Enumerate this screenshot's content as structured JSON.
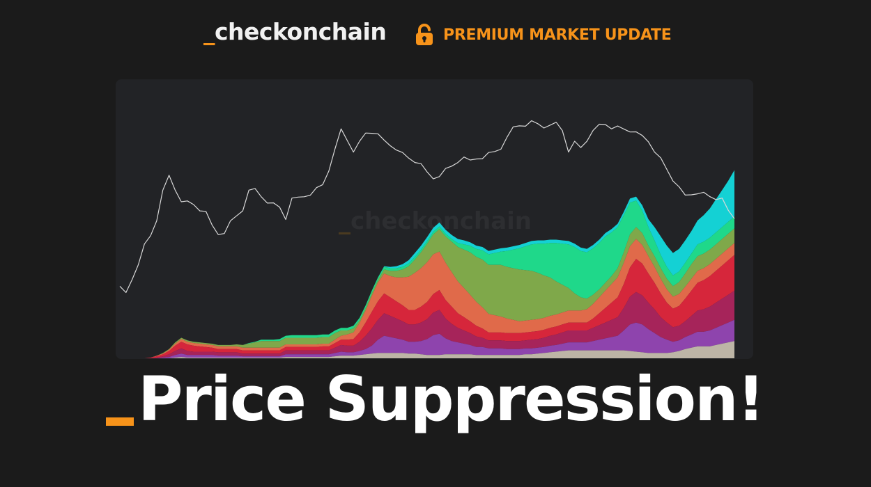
{
  "header": {
    "brand_prefix": "_",
    "brand_name": "checkonchain",
    "premium_label": "PREMIUM MARKET UPDATE",
    "premium_icon": "lock-icon"
  },
  "chart": {
    "watermark_prefix": "_",
    "watermark_text": "checkonchain"
  },
  "headline": {
    "text": "Price Suppression!"
  },
  "colors": {
    "background": "#1b1b1b",
    "chart_background": "#222326",
    "accent": "#f7931a",
    "text": "#ffffff",
    "price_line": "#d9d9d9"
  },
  "chart_data": {
    "type": "area",
    "title": "",
    "xlabel": "",
    "ylabel": "",
    "grid": false,
    "x": [
      0,
      1,
      2,
      3,
      4,
      5,
      6,
      7,
      8,
      9,
      10,
      11,
      12,
      13,
      14,
      15,
      16,
      17,
      18,
      19,
      20,
      21,
      22,
      23,
      24,
      25,
      26,
      27,
      28,
      29,
      30,
      31,
      32,
      33,
      34,
      35,
      36,
      37,
      38,
      39,
      40,
      41,
      42,
      43,
      44,
      45,
      46,
      47,
      48,
      49,
      50,
      51,
      52,
      53,
      54,
      55,
      56,
      57,
      58,
      59,
      60,
      61,
      62,
      63,
      64,
      65,
      66,
      67,
      68,
      69,
      70,
      71,
      72,
      73,
      74,
      75,
      76,
      77,
      78,
      79,
      80,
      81,
      82,
      83,
      84,
      85,
      86,
      87,
      88,
      89,
      90,
      91,
      92,
      93,
      94,
      95,
      96,
      97,
      98,
      99,
      100
    ],
    "price_line": {
      "color": "#d9d9d9",
      "values": [
        105,
        98,
        120,
        145,
        170,
        185,
        210,
        250,
        275,
        255,
        240,
        235,
        232,
        225,
        218,
        200,
        188,
        192,
        205,
        215,
        225,
        250,
        255,
        245,
        238,
        232,
        228,
        212,
        238,
        242,
        245,
        250,
        255,
        262,
        285,
        312,
        345,
        330,
        315,
        325,
        340,
        342,
        335,
        328,
        322,
        318,
        308,
        302,
        298,
        290,
        280,
        272,
        278,
        284,
        290,
        298,
        300,
        298,
        302,
        305,
        308,
        312,
        318,
        330,
        348,
        352,
        354,
        356,
        354,
        350,
        348,
        355,
        345,
        315,
        325,
        318,
        330,
        340,
        352,
        354,
        350,
        348,
        346,
        344,
        338,
        335,
        328,
        315,
        300,
        285,
        270,
        255,
        245,
        248,
        252,
        248,
        244,
        242,
        238,
        222,
        212
      ]
    },
    "series": [
      {
        "color": "#bdb5a6",
        "values": [
          0,
          0,
          0,
          0,
          0,
          0,
          0,
          0,
          0,
          1,
          2,
          1,
          1,
          1,
          1,
          1,
          1,
          1,
          1,
          1,
          1,
          1,
          1,
          1,
          1,
          1,
          1,
          2,
          2,
          2,
          2,
          2,
          2,
          2,
          2,
          3,
          4,
          4,
          4,
          5,
          6,
          7,
          8,
          8,
          8,
          8,
          8,
          7,
          7,
          6,
          5,
          5,
          5,
          6,
          6,
          6,
          6,
          6,
          5,
          5,
          5,
          5,
          5,
          5,
          5,
          5,
          6,
          6,
          7,
          8,
          9,
          10,
          11,
          12,
          12,
          12,
          12,
          12,
          12,
          12,
          12,
          12,
          12,
          11,
          10,
          9,
          8,
          8,
          8,
          8,
          9,
          11,
          14,
          16,
          18,
          18,
          18,
          20,
          22,
          24,
          26
        ]
      },
      {
        "color": "#8e44ad",
        "values": [
          0,
          0,
          0,
          0,
          0,
          0,
          0,
          1,
          2,
          4,
          5,
          4,
          4,
          4,
          4,
          4,
          3,
          3,
          3,
          3,
          2,
          2,
          2,
          2,
          2,
          2,
          2,
          4,
          4,
          4,
          4,
          4,
          4,
          4,
          4,
          5,
          6,
          5,
          5,
          6,
          8,
          12,
          20,
          26,
          24,
          22,
          20,
          18,
          18,
          20,
          24,
          30,
          32,
          24,
          20,
          18,
          16,
          14,
          12,
          12,
          10,
          10,
          10,
          9,
          9,
          9,
          9,
          9,
          9,
          9,
          10,
          10,
          11,
          12,
          12,
          12,
          12,
          14,
          16,
          18,
          20,
          22,
          30,
          40,
          44,
          42,
          36,
          30,
          24,
          20,
          16,
          16,
          18,
          20,
          22,
          22,
          24,
          26,
          28,
          30,
          32
        ]
      },
      {
        "color": "#a6245a",
        "values": [
          0,
          0,
          0,
          0,
          0,
          0,
          1,
          2,
          4,
          6,
          8,
          6,
          5,
          5,
          5,
          5,
          5,
          5,
          5,
          5,
          4,
          4,
          4,
          4,
          4,
          4,
          4,
          6,
          6,
          6,
          6,
          6,
          6,
          6,
          6,
          8,
          10,
          10,
          10,
          14,
          20,
          26,
          30,
          34,
          32,
          30,
          28,
          26,
          26,
          28,
          30,
          34,
          36,
          30,
          26,
          22,
          20,
          18,
          16,
          14,
          12,
          12,
          12,
          12,
          12,
          12,
          12,
          13,
          13,
          14,
          15,
          16,
          17,
          18,
          18,
          18,
          18,
          20,
          22,
          24,
          26,
          28,
          34,
          42,
          46,
          44,
          40,
          36,
          30,
          26,
          22,
          22,
          24,
          28,
          32,
          34,
          36,
          38,
          40,
          42,
          44
        ]
      },
      {
        "color": "#d6263b",
        "values": [
          0,
          0,
          0,
          0,
          0,
          1,
          2,
          3,
          5,
          8,
          10,
          10,
          9,
          8,
          7,
          6,
          5,
          5,
          5,
          5,
          5,
          5,
          5,
          5,
          5,
          5,
          5,
          5,
          5,
          5,
          5,
          5,
          5,
          6,
          6,
          7,
          8,
          9,
          10,
          14,
          20,
          25,
          28,
          30,
          28,
          26,
          24,
          22,
          22,
          24,
          26,
          28,
          30,
          28,
          26,
          22,
          20,
          18,
          16,
          14,
          12,
          12,
          12,
          12,
          12,
          12,
          12,
          12,
          12,
          12,
          12,
          12,
          12,
          12,
          12,
          12,
          12,
          14,
          18,
          22,
          26,
          30,
          36,
          44,
          50,
          48,
          44,
          40,
          36,
          30,
          28,
          30,
          34,
          38,
          42,
          44,
          46,
          48,
          50,
          52,
          54
        ]
      },
      {
        "color": "#e06a4a",
        "values": [
          0,
          0,
          0,
          0,
          0,
          0,
          1,
          1,
          2,
          3,
          4,
          4,
          4,
          4,
          4,
          4,
          4,
          4,
          4,
          4,
          4,
          4,
          4,
          4,
          4,
          4,
          4,
          4,
          4,
          4,
          4,
          4,
          4,
          4,
          4,
          5,
          6,
          8,
          10,
          14,
          18,
          24,
          28,
          30,
          32,
          36,
          42,
          50,
          56,
          58,
          60,
          60,
          58,
          56,
          52,
          48,
          44,
          40,
          36,
          32,
          28,
          26,
          24,
          22,
          20,
          18,
          18,
          18,
          18,
          18,
          18,
          18,
          18,
          18,
          18,
          18,
          20,
          22,
          24,
          26,
          28,
          30,
          32,
          32,
          30,
          28,
          26,
          24,
          22,
          20,
          18,
          18,
          18,
          18,
          18,
          18,
          18,
          18,
          18,
          18,
          18
        ]
      },
      {
        "color": "#7fa84a",
        "values": [
          0,
          0,
          0,
          0,
          0,
          0,
          0,
          1,
          1,
          2,
          2,
          2,
          2,
          2,
          2,
          2,
          2,
          2,
          2,
          3,
          4,
          6,
          8,
          10,
          10,
          10,
          10,
          10,
          10,
          10,
          10,
          10,
          10,
          10,
          10,
          10,
          8,
          6,
          6,
          4,
          4,
          4,
          4,
          6,
          8,
          10,
          12,
          16,
          20,
          24,
          28,
          30,
          34,
          40,
          46,
          52,
          58,
          64,
          68,
          72,
          74,
          76,
          78,
          78,
          78,
          78,
          76,
          74,
          70,
          64,
          58,
          50,
          42,
          34,
          26,
          20,
          16,
          14,
          12,
          12,
          12,
          14,
          16,
          18,
          18,
          18,
          16,
          16,
          16,
          16,
          16,
          18,
          20,
          22,
          22,
          22,
          22,
          22,
          22,
          22,
          22
        ]
      },
      {
        "color": "#1fd88a",
        "values": [
          0,
          0,
          0,
          0,
          0,
          0,
          0,
          0,
          0,
          0,
          0,
          0,
          0,
          0,
          0,
          0,
          0,
          0,
          0,
          0,
          0,
          1,
          1,
          2,
          2,
          2,
          3,
          3,
          4,
          4,
          4,
          4,
          4,
          4,
          4,
          4,
          4,
          4,
          4,
          4,
          4,
          4,
          4,
          4,
          4,
          4,
          4,
          4,
          4,
          4,
          4,
          4,
          4,
          4,
          4,
          6,
          8,
          10,
          12,
          14,
          16,
          18,
          20,
          24,
          28,
          32,
          36,
          40,
          44,
          48,
          52,
          58,
          62,
          66,
          70,
          70,
          70,
          70,
          70,
          70,
          66,
          62,
          56,
          48,
          40,
          34,
          28,
          24,
          20,
          18,
          16,
          16,
          16,
          16,
          18,
          18,
          18,
          18,
          18,
          18,
          18
        ]
      },
      {
        "color": "#14d1d4",
        "values": [
          0,
          0,
          0,
          0,
          0,
          0,
          0,
          0,
          0,
          0,
          0,
          0,
          0,
          0,
          0,
          0,
          0,
          0,
          0,
          0,
          0,
          0,
          0,
          0,
          0,
          0,
          0,
          0,
          0,
          0,
          0,
          0,
          0,
          0,
          0,
          0,
          0,
          0,
          0,
          0,
          0,
          0,
          0,
          1,
          2,
          3,
          4,
          5,
          6,
          6,
          6,
          6,
          6,
          6,
          6,
          6,
          6,
          5,
          5,
          5,
          5,
          5,
          5,
          5,
          5,
          5,
          5,
          5,
          5,
          5,
          5,
          5,
          5,
          5,
          5,
          5,
          5,
          5,
          5,
          5,
          5,
          5,
          5,
          6,
          6,
          8,
          12,
          20,
          28,
          32,
          34,
          34,
          34,
          34,
          36,
          40,
          44,
          50,
          56,
          62,
          70
        ]
      }
    ]
  }
}
